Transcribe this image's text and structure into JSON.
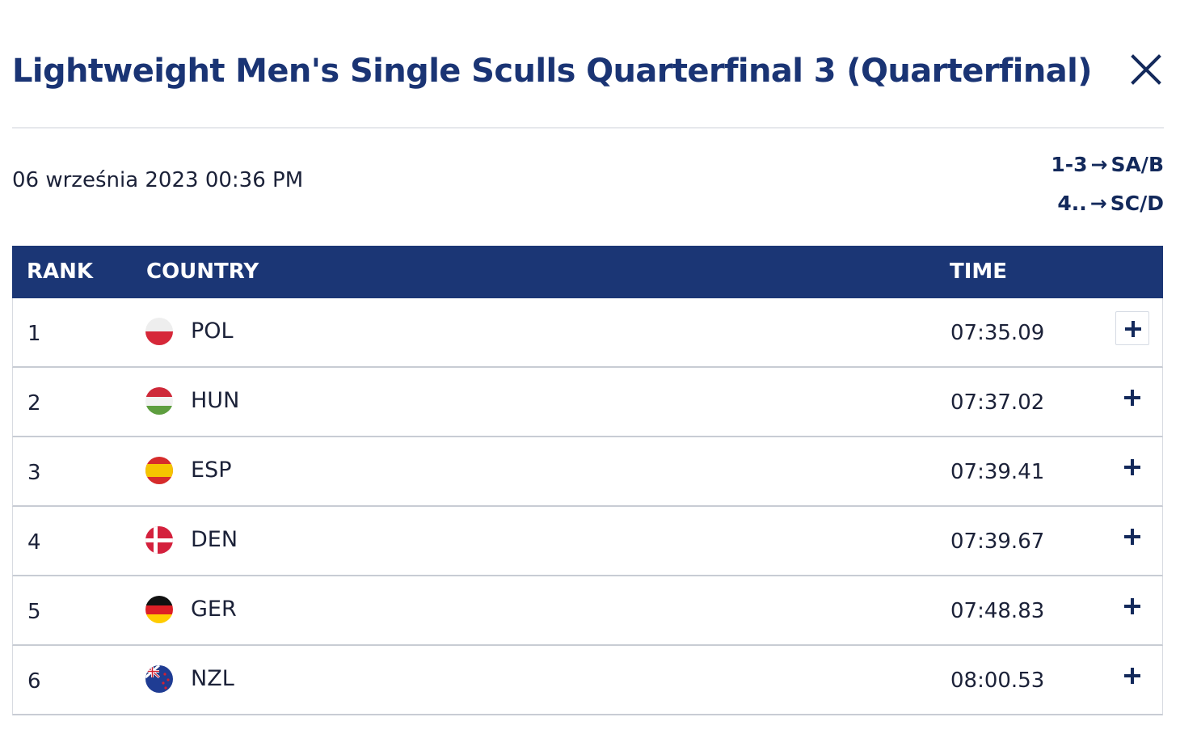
{
  "header": {
    "title": "Lightweight Men's Single Sculls Quarterfinal 3 (Quarterfinal)",
    "close_icon": "close-icon"
  },
  "meta": {
    "date": "06 września 2023 00:36 PM"
  },
  "progression": [
    {
      "ranks": "1-3",
      "arrow": "→",
      "target": "SA/B"
    },
    {
      "ranks": "4..",
      "arrow": "→",
      "target": "SC/D"
    }
  ],
  "table": {
    "headers": {
      "rank": "RANK",
      "country": "COUNTRY",
      "time": "TIME"
    },
    "expand_icon": "plus-icon",
    "rows": [
      {
        "rank": "1",
        "flag_icon": "flag-poland-icon",
        "country": "POL",
        "time": "07:35.09"
      },
      {
        "rank": "2",
        "flag_icon": "flag-hungary-icon",
        "country": "HUN",
        "time": "07:37.02"
      },
      {
        "rank": "3",
        "flag_icon": "flag-spain-icon",
        "country": "ESP",
        "time": "07:39.41"
      },
      {
        "rank": "4",
        "flag_icon": "flag-denmark-icon",
        "country": "DEN",
        "time": "07:39.67"
      },
      {
        "rank": "5",
        "flag_icon": "flag-germany-icon",
        "country": "GER",
        "time": "07:48.83"
      },
      {
        "rank": "6",
        "flag_icon": "flag-new-zealand-icon",
        "country": "NZL",
        "time": "08:00.53"
      }
    ]
  },
  "colors": {
    "title": "#1a3474",
    "header_bar": "#1b3675",
    "text": "#1b2138",
    "divider": "#e6e8ec"
  }
}
